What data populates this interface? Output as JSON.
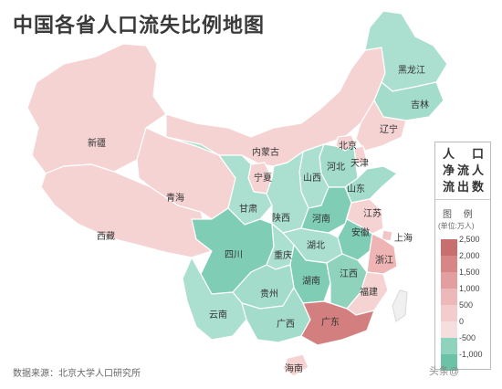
{
  "title": "中国各省人口流失比例地图",
  "source": "数据来源：北京大学人口研究所",
  "watermark": "头条@",
  "legend": {
    "head": [
      "人",
      "口",
      "净",
      "流",
      "流",
      "出",
      "人",
      "数"
    ],
    "subtitle": "图  例",
    "unit": "(单位:万人)",
    "stops": [
      {
        "value": "2,500",
        "color": "#c96e6e"
      },
      {
        "value": "2,000",
        "color": "#d78585"
      },
      {
        "value": "1,500",
        "color": "#e39f9f"
      },
      {
        "value": "1,000",
        "color": "#edb8b8"
      },
      {
        "value": "500",
        "color": "#f3cdcd"
      },
      {
        "value": "0",
        "color": "#f6dede"
      },
      {
        "value": "-500",
        "color": "#8fd3bd"
      },
      {
        "value": "-1,000",
        "color": "#6cc2a6"
      }
    ]
  },
  "provinces": [
    {
      "name": "新疆",
      "color": "#f6d3d3"
    },
    {
      "name": "西藏",
      "color": "#f6d3d3"
    },
    {
      "name": "青海",
      "color": "#f6d3d3"
    },
    {
      "name": "内蒙古",
      "color": "#f6d3d3"
    },
    {
      "name": "黑龙江",
      "color": "#abdfd0"
    },
    {
      "name": "吉林",
      "color": "#a3dccb"
    },
    {
      "name": "辽宁",
      "color": "#f6d3d3"
    },
    {
      "name": "北京",
      "color": "#f6d3d3"
    },
    {
      "name": "天津",
      "color": "#f6d3d3"
    },
    {
      "name": "河北",
      "color": "#a3dccb"
    },
    {
      "name": "山西",
      "color": "#abdfd0"
    },
    {
      "name": "山东",
      "color": "#a3dccb"
    },
    {
      "name": "宁夏",
      "color": "#f6d3d3"
    },
    {
      "name": "甘肃",
      "color": "#abdfd0"
    },
    {
      "name": "陕西",
      "color": "#abdfd0"
    },
    {
      "name": "河南",
      "color": "#7fcdb5"
    },
    {
      "name": "江苏",
      "color": "#f6d3d3"
    },
    {
      "name": "安徽",
      "color": "#7fcdb5"
    },
    {
      "name": "上海",
      "color": "#f3c6c6"
    },
    {
      "name": "四川",
      "color": "#7fcdb5"
    },
    {
      "name": "重庆",
      "color": "#abdfd0"
    },
    {
      "name": "湖北",
      "color": "#abdfd0"
    },
    {
      "name": "浙江",
      "color": "#efb4b4"
    },
    {
      "name": "湖南",
      "color": "#7fcdb5"
    },
    {
      "name": "江西",
      "color": "#8fd3bd"
    },
    {
      "name": "贵州",
      "color": "#a3dccb"
    },
    {
      "name": "福建",
      "color": "#f6d3d3"
    },
    {
      "name": "云南",
      "color": "#abdfd0"
    },
    {
      "name": "广西",
      "color": "#a3dccb"
    },
    {
      "name": "广东",
      "color": "#d47f7f"
    },
    {
      "name": "海南",
      "color": "#f6d3d3"
    }
  ]
}
